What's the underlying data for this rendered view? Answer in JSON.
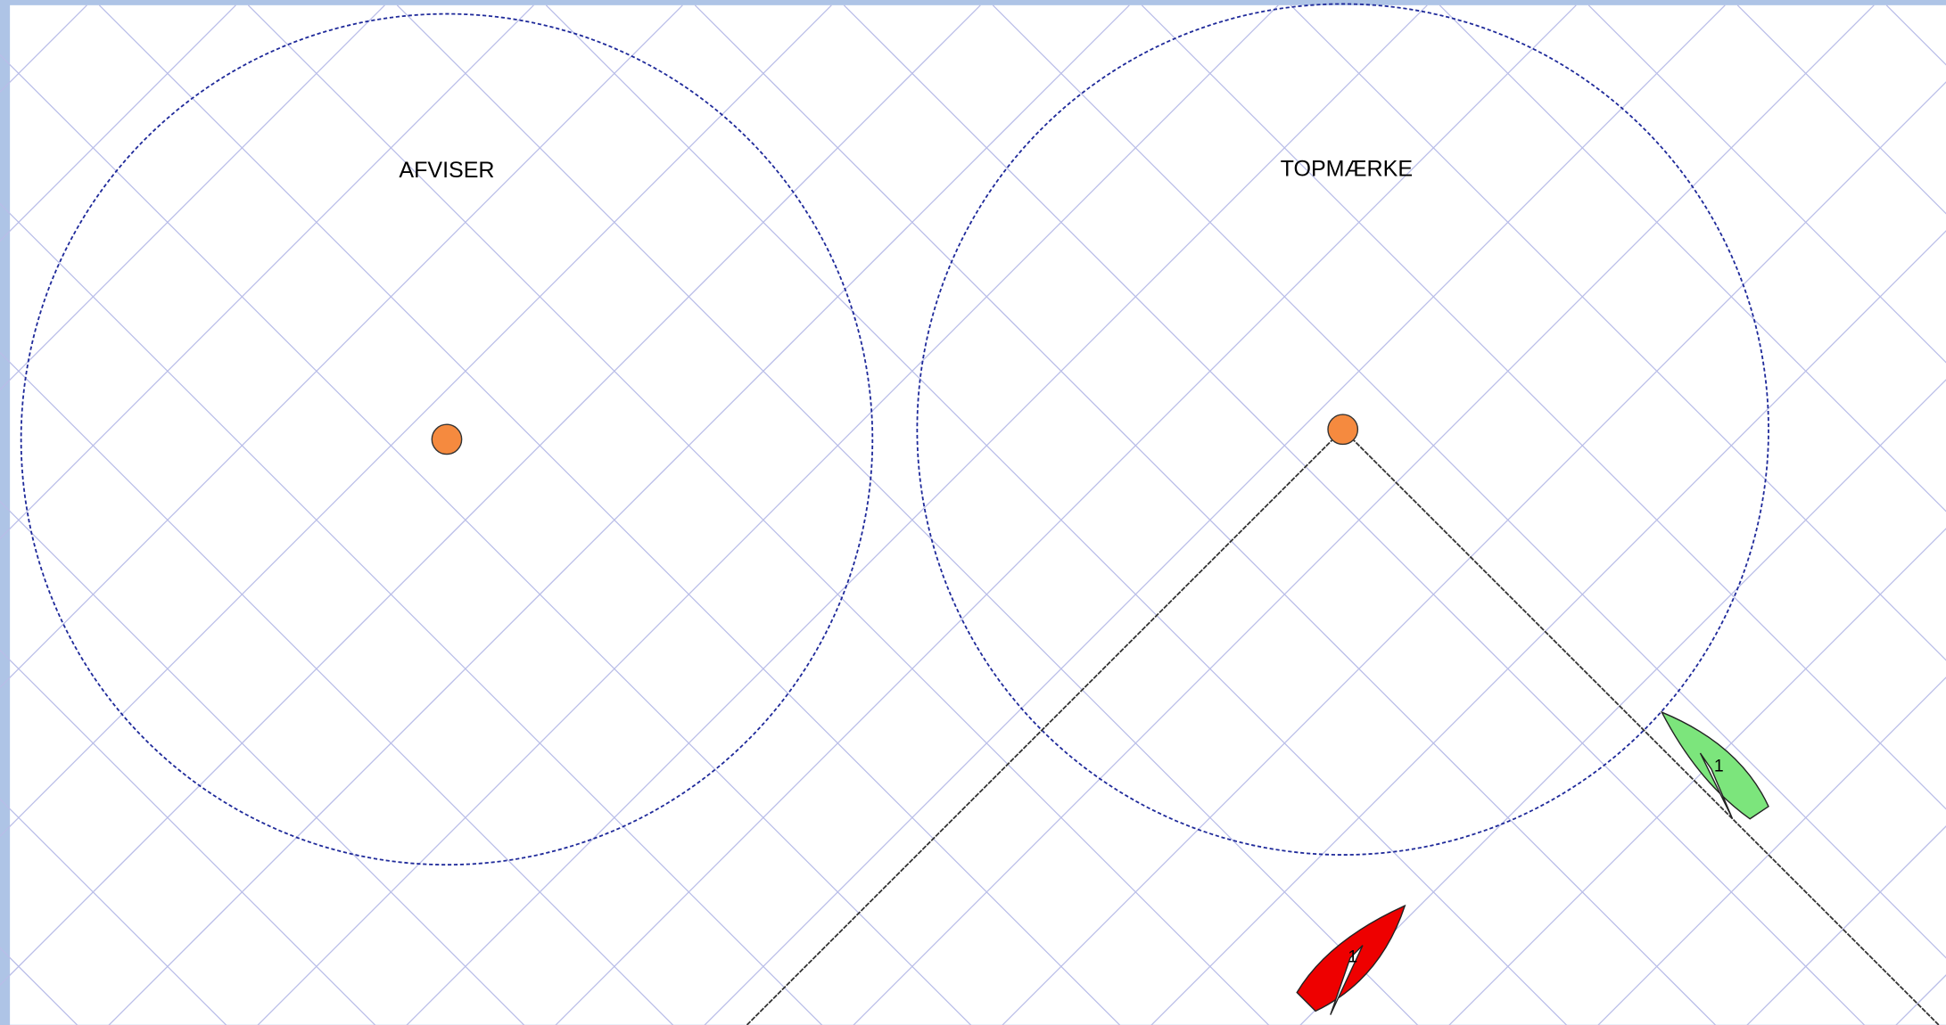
{
  "marks": [
    {
      "label": "AFVISER"
    },
    {
      "label": "TOPMÆRKE"
    }
  ],
  "boats": [
    {
      "number": "1"
    },
    {
      "number": "1"
    }
  ]
}
